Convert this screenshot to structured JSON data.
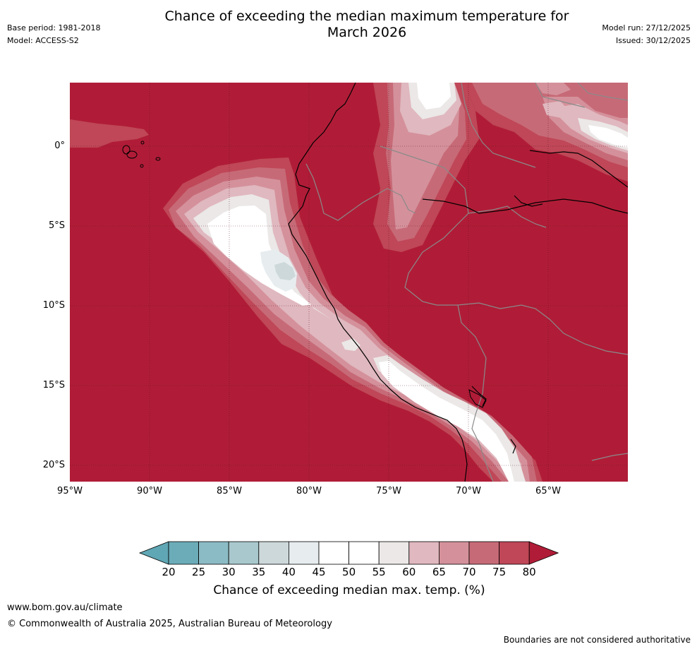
{
  "header": {
    "title_line1": "Chance of exceeding the median maximum temperature for",
    "title_line2": "March 2026",
    "base_period": "Base period: 1981-2018",
    "model": "Model: ACCESS-S2",
    "model_run": "Model run: 27/12/2025",
    "issued": "Issued: 30/12/2025"
  },
  "map": {
    "lat_labels": [
      "0°",
      "5°S",
      "10°S",
      "15°S",
      "20°S"
    ],
    "lon_labels": [
      "95°W",
      "90°W",
      "85°W",
      "80°W",
      "75°W",
      "70°W",
      "65°W"
    ],
    "background_color": "#b01c37"
  },
  "colorbar": {
    "ticks": [
      "20",
      "25",
      "30",
      "35",
      "40",
      "45",
      "50",
      "55",
      "60",
      "65",
      "70",
      "75",
      "80"
    ],
    "colors": [
      "#5fa7b4",
      "#6cacb9",
      "#8bbbc5",
      "#a8c8cd",
      "#cdd8da",
      "#e7edef",
      "#ffffff",
      "#ffffff",
      "#ebe8e7",
      "#e0b8bf",
      "#d4919b",
      "#c76a77",
      "#bf4757",
      "#b01c37"
    ],
    "title": "Chance of exceeding median max. temp. (%)"
  },
  "footer": {
    "website": "www.bom.gov.au/climate",
    "copyright": "© Commonwealth of Australia 2025, Australian Bureau of Meteorology",
    "disclaimer": "Boundaries are not considered authoritative"
  }
}
